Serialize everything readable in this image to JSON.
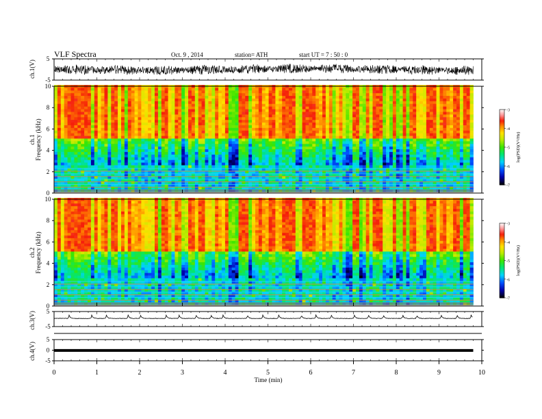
{
  "header": {
    "title": "VLF Spectra",
    "date": "Oct. 9 , 2014",
    "station": "station= ATH",
    "start": "start UT = 7 : 50 : 0"
  },
  "chart_data": [
    {
      "type": "line",
      "panel": "ch1-waveform",
      "ylabel": "ch.1(V)",
      "ylim": [
        -5,
        5
      ],
      "yticks": [
        "5",
        "-5"
      ],
      "xlim": [
        0,
        10
      ],
      "series_color": "#000000",
      "description_values": {
        "amplitude_range_V": [
          -1.5,
          1.5
        ]
      }
    },
    {
      "type": "heatmap",
      "panel": "ch1-spectrogram",
      "ylabel": "ch.1\nFrequency (kHz)",
      "ylabel_lines": [
        "ch.1",
        "Frequency (kHz)"
      ],
      "ylim": [
        0,
        10
      ],
      "yticks": [
        "0",
        "2",
        "4",
        "6",
        "8",
        "10"
      ],
      "xlim": [
        0,
        9.8
      ],
      "colorbar": {
        "label": "log(PSD)(V²/Hz)",
        "range": [
          -7,
          -3
        ],
        "ticks": [
          "-3",
          "-4",
          "-5",
          "-6",
          "-7"
        ]
      },
      "bands_kHz": [
        {
          "from": 0,
          "to": 2.5,
          "level": -5.3
        },
        {
          "from": 2.5,
          "to": 5,
          "level": -4.6
        },
        {
          "from": 5,
          "to": 10,
          "level": -3.6
        }
      ]
    },
    {
      "type": "heatmap",
      "panel": "ch2-spectrogram",
      "ylabel": "ch.2\nFrequency (kHz)",
      "ylabel_lines": [
        "ch.2",
        "Frequency (kHz)"
      ],
      "ylim": [
        0,
        10
      ],
      "yticks": [
        "0",
        "2",
        "4",
        "6",
        "8",
        "10"
      ],
      "xlim": [
        0,
        9.8
      ],
      "colorbar": {
        "label": "log(PSD)(V²/Hz)",
        "range": [
          -7,
          -3
        ],
        "ticks": [
          "-3",
          "-4",
          "-5",
          "-6",
          "-7"
        ]
      },
      "bands_kHz": [
        {
          "from": 0,
          "to": 2.5,
          "level": -5.3
        },
        {
          "from": 2.5,
          "to": 5,
          "level": -4.6
        },
        {
          "from": 5,
          "to": 10,
          "level": -3.6
        }
      ]
    },
    {
      "type": "line",
      "panel": "ch3-waveform",
      "ylabel": "ch.3(V)",
      "ylim": [
        -5,
        5
      ],
      "yticks": [
        "5",
        "-5"
      ],
      "xlim": [
        0,
        10
      ],
      "pulse_times_min": [
        0.35,
        0.88,
        1.22,
        1.73,
        2.02,
        2.62,
        2.92,
        3.32,
        3.67,
        3.95,
        4.52,
        4.88,
        5.25,
        5.78,
        6.12,
        6.48,
        7.02,
        7.35,
        7.7,
        8.15,
        8.48,
        9.05,
        9.42,
        9.75
      ]
    },
    {
      "type": "line",
      "panel": "ch4-waveform",
      "ylabel": "ch.4(V)",
      "ylim": [
        -5,
        5
      ],
      "yticks": [
        "5",
        "0",
        "-5"
      ],
      "xlim": [
        0,
        10
      ],
      "constant_value_V": -0.3
    }
  ],
  "xaxis": {
    "label": "Time (min)",
    "ticks": [
      "0",
      "1",
      "2",
      "3",
      "4",
      "5",
      "6",
      "7",
      "8",
      "9",
      "10"
    ],
    "range": [
      0,
      10
    ]
  }
}
